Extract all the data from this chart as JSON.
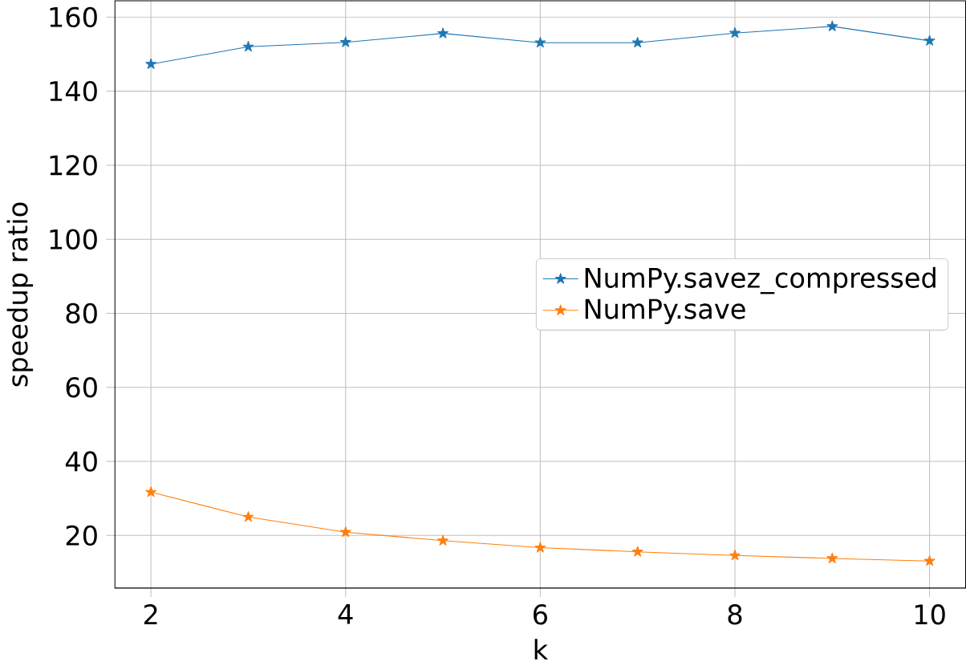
{
  "chart_data": {
    "type": "line",
    "xlabel": "k",
    "ylabel": "speedup ratio",
    "x": [
      2,
      3,
      4,
      5,
      6,
      7,
      8,
      9,
      10
    ],
    "series": [
      {
        "name": "NumPy.savez_compressed",
        "color": "#1f77b4",
        "values": [
          147.3,
          152,
          153.2,
          155.6,
          153.1,
          153.1,
          155.7,
          157.5,
          153.6
        ]
      },
      {
        "name": "NumPy.save",
        "color": "#ff7f0e",
        "values": [
          31.7,
          25,
          20.9,
          18.6,
          16.7,
          15.6,
          14.6,
          13.8,
          13.1
        ]
      }
    ],
    "xlim": [
      1.63,
      10.37
    ],
    "ylim": [
      5.8,
      164.4
    ],
    "xticks": [
      2,
      4,
      6,
      8,
      10
    ],
    "yticks": [
      20,
      40,
      60,
      80,
      100,
      120,
      140,
      160
    ],
    "grid": true,
    "legend": "right",
    "marker": "star",
    "line_style": "solid"
  }
}
